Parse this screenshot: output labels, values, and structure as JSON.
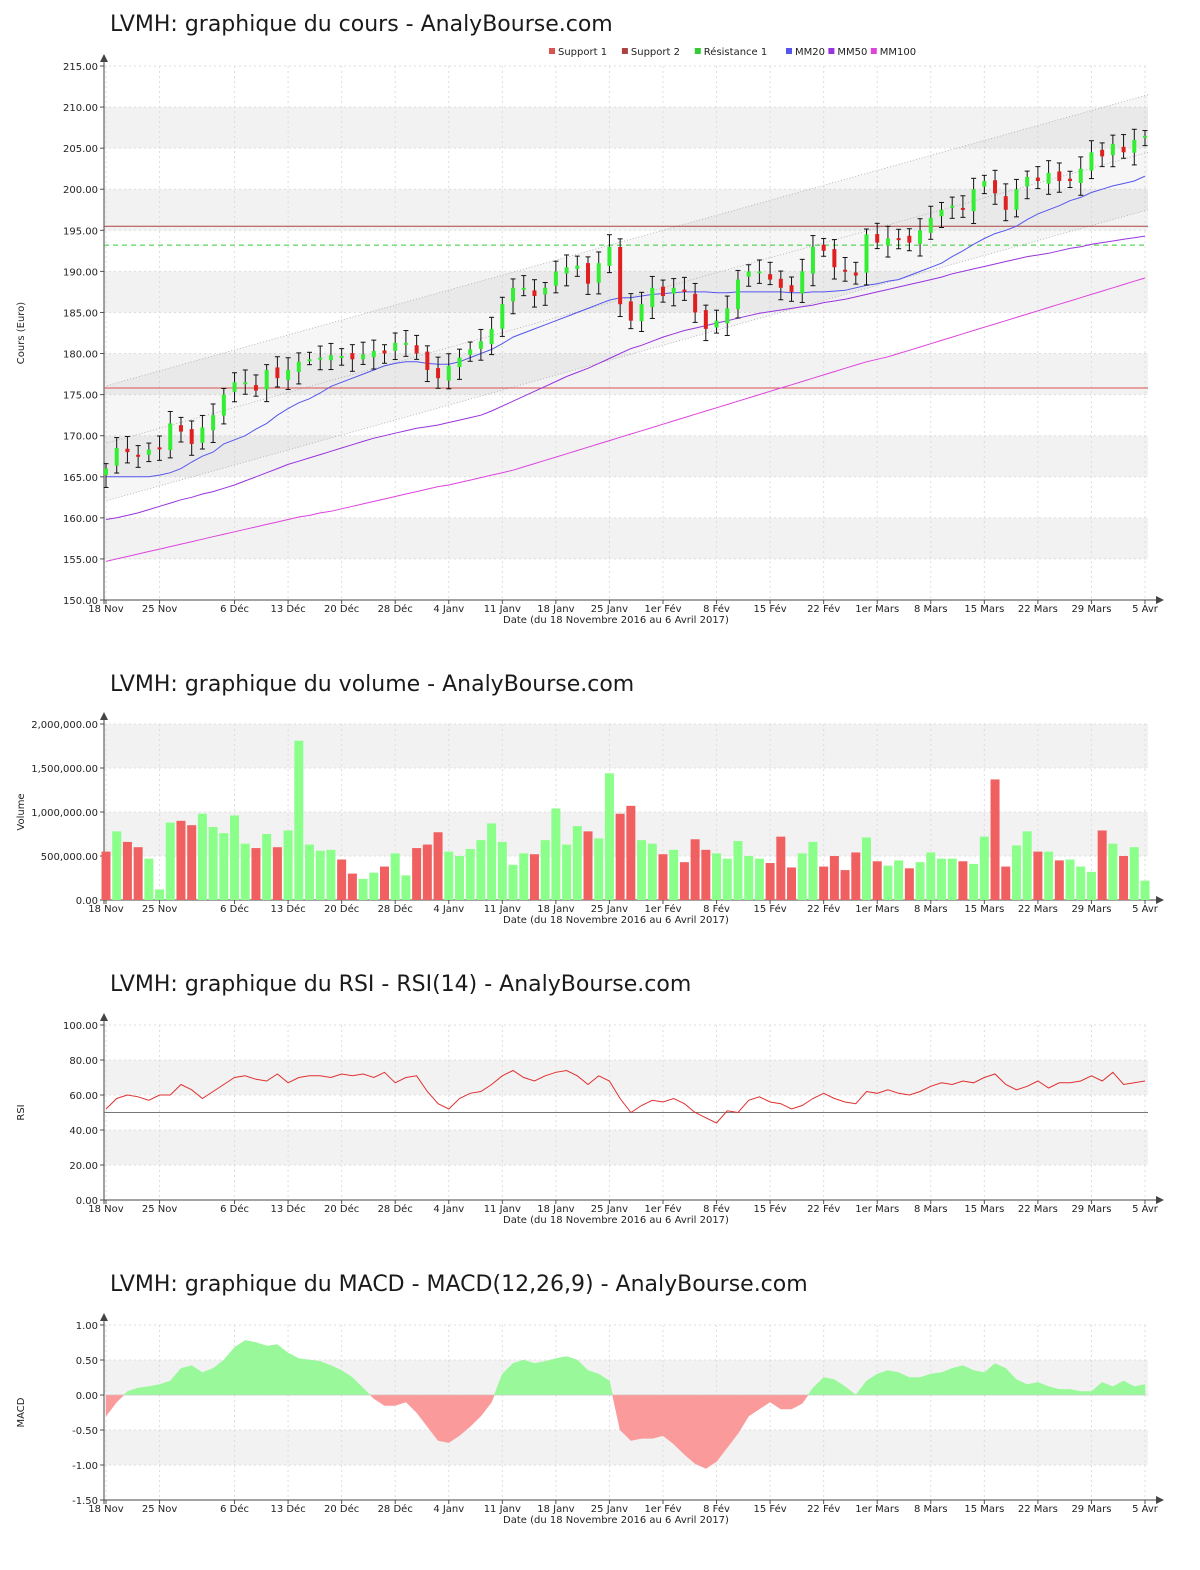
{
  "chart_data": [
    {
      "type": "candlestick",
      "title": "LVMH: graphique du cours - AnalyBourse.com",
      "xlabel": "Date (du 18 Novembre 2016 au 6 Avril 2017)",
      "ylabel": "Cours (Euro)",
      "ylim": [
        150,
        215
      ],
      "yticks": [
        "150.00",
        "155.00",
        "160.00",
        "165.00",
        "170.00",
        "175.00",
        "180.00",
        "185.00",
        "190.00",
        "195.00",
        "200.00",
        "205.00",
        "210.00",
        "215.00"
      ],
      "xticks": [
        "18 Nov",
        "25 Nov",
        "6 Déc",
        "13 Déc",
        "20 Déc",
        "28 Déc",
        "4 Janv",
        "11 Janv",
        "18 Janv",
        "25 Janv",
        "1er Fév",
        "8 Fév",
        "15 Fév",
        "22 Fév",
        "1er Mars",
        "8 Mars",
        "15 Mars",
        "22 Mars",
        "29 Mars",
        "5 Avr"
      ],
      "xtick_index": [
        0,
        5,
        12,
        17,
        22,
        27,
        32,
        37,
        42,
        47,
        52,
        57,
        62,
        67,
        72,
        77,
        82,
        87,
        92,
        97
      ],
      "legend": [
        {
          "name": "Support 1",
          "color": "#d9534f"
        },
        {
          "name": "Support 2",
          "color": "#a94442"
        },
        {
          "name": "Résistance 1",
          "color": "#33cc33"
        },
        {
          "name": "MM20",
          "color": "#5555ee"
        },
        {
          "name": "MM50",
          "color": "#9933dd"
        },
        {
          "name": "MM100",
          "color": "#dd44dd"
        }
      ],
      "levels": {
        "support1": 175.8,
        "support2": 195.5,
        "resistance1": 193.2
      },
      "close": [
        166.0,
        168.5,
        168.0,
        167.5,
        168.3,
        168.5,
        171.5,
        170.5,
        169.0,
        171.0,
        172.5,
        175.0,
        176.5,
        176.5,
        175.5,
        178.0,
        177.0,
        178.0,
        179.0,
        179.3,
        179.5,
        179.8,
        179.7,
        179.3,
        179.9,
        180.3,
        180.0,
        181.3,
        181.3,
        180.0,
        178.0,
        177.0,
        178.5,
        179.5,
        180.5,
        181.5,
        183.0,
        186.0,
        188.0,
        188.0,
        187.0,
        188.0,
        190.0,
        190.5,
        190.7,
        188.5,
        191.0,
        193.0,
        186.0,
        184.0,
        186.0,
        188.0,
        187.0,
        188.0,
        187.5,
        185.0,
        183.0,
        184.0,
        185.5,
        189.0,
        190.0,
        190.0,
        189.0,
        188.0,
        187.5,
        190.0,
        193.0,
        192.5,
        190.5,
        190.0,
        189.5,
        194.5,
        193.5,
        194.0,
        194.0,
        193.5,
        195.0,
        196.5,
        197.5,
        198.0,
        197.5,
        200.0,
        201.0,
        199.5,
        197.5,
        200.0,
        201.5,
        201.0,
        202.0,
        201.0,
        201.0,
        202.5,
        204.5,
        204.0,
        205.5,
        204.5,
        206.0,
        206.5
      ],
      "series": [
        {
          "name": "MM20",
          "values": [
            165.0,
            165.0,
            165.0,
            165.0,
            165.0,
            165.2,
            165.5,
            166.0,
            166.8,
            167.5,
            168.0,
            169.0,
            169.5,
            170.0,
            170.8,
            171.5,
            172.5,
            173.3,
            174.0,
            174.5,
            175.2,
            176.0,
            176.5,
            177.0,
            177.5,
            178.0,
            178.5,
            178.8,
            179.0,
            179.0,
            178.8,
            178.7,
            178.7,
            179.0,
            179.5,
            180.0,
            180.5,
            181.2,
            182.0,
            182.5,
            183.0,
            183.5,
            184.0,
            184.5,
            185.0,
            185.5,
            186.0,
            186.5,
            186.8,
            186.8,
            187.0,
            187.2,
            187.3,
            187.4,
            187.5,
            187.5,
            187.5,
            187.4,
            187.4,
            187.5,
            187.5,
            187.5,
            187.5,
            187.5,
            187.4,
            187.4,
            187.5,
            187.5,
            187.6,
            187.7,
            188.0,
            188.3,
            188.5,
            188.8,
            189.0,
            189.5,
            190.0,
            190.5,
            191.0,
            191.8,
            192.5,
            193.3,
            194.0,
            194.6,
            195.0,
            195.5,
            196.3,
            197.0,
            197.5,
            198.0,
            198.6,
            199.0,
            199.6,
            200.0,
            200.4,
            200.7,
            201.0,
            201.6
          ]
        },
        {
          "name": "MM50",
          "values": [
            159.8,
            160.0,
            160.3,
            160.6,
            161.0,
            161.4,
            161.8,
            162.2,
            162.5,
            162.9,
            163.2,
            163.6,
            164.0,
            164.5,
            165.0,
            165.5,
            166.0,
            166.5,
            166.9,
            167.3,
            167.7,
            168.1,
            168.5,
            168.9,
            169.3,
            169.7,
            170.0,
            170.3,
            170.6,
            170.9,
            171.1,
            171.3,
            171.6,
            171.9,
            172.2,
            172.5,
            173.0,
            173.6,
            174.2,
            174.8,
            175.4,
            176.0,
            176.6,
            177.2,
            177.7,
            178.2,
            178.8,
            179.4,
            180.0,
            180.6,
            181.0,
            181.5,
            182.0,
            182.4,
            182.8,
            183.1,
            183.4,
            183.7,
            184.0,
            184.3,
            184.6,
            184.9,
            185.1,
            185.3,
            185.5,
            185.7,
            185.9,
            186.2,
            186.4,
            186.6,
            186.9,
            187.2,
            187.5,
            187.8,
            188.1,
            188.4,
            188.7,
            189.0,
            189.3,
            189.7,
            190.0,
            190.3,
            190.6,
            190.9,
            191.2,
            191.5,
            191.8,
            192.0,
            192.2,
            192.5,
            192.8,
            193.0,
            193.3,
            193.5,
            193.7,
            193.9,
            194.1,
            194.3
          ]
        },
        {
          "name": "MM100",
          "values": [
            154.7,
            155.0,
            155.3,
            155.6,
            155.9,
            156.2,
            156.5,
            156.8,
            157.1,
            157.4,
            157.7,
            158.0,
            158.3,
            158.6,
            158.9,
            159.2,
            159.5,
            159.8,
            160.1,
            160.3,
            160.6,
            160.8,
            161.1,
            161.4,
            161.7,
            162.0,
            162.3,
            162.6,
            162.9,
            163.2,
            163.5,
            163.8,
            164.0,
            164.3,
            164.6,
            164.9,
            165.2,
            165.5,
            165.8,
            166.2,
            166.6,
            167.0,
            167.4,
            167.8,
            168.2,
            168.6,
            169.0,
            169.4,
            169.8,
            170.2,
            170.6,
            171.0,
            171.4,
            171.8,
            172.2,
            172.6,
            173.0,
            173.4,
            173.8,
            174.2,
            174.6,
            175.0,
            175.4,
            175.8,
            176.2,
            176.6,
            177.0,
            177.4,
            177.8,
            178.2,
            178.6,
            179.0,
            179.3,
            179.6,
            180.0,
            180.4,
            180.8,
            181.2,
            181.6,
            182.0,
            182.4,
            182.8,
            183.2,
            183.6,
            184.0,
            184.4,
            184.8,
            185.2,
            185.6,
            186.0,
            186.4,
            186.8,
            187.2,
            187.6,
            188.0,
            188.4,
            188.8,
            189.2
          ]
        }
      ],
      "channel": {
        "upper": [
          176.0,
          211.5
        ],
        "lower": [
          162.0,
          197.5
        ],
        "mid": [
          169.0,
          204.5
        ]
      },
      "grid": true
    },
    {
      "type": "bar",
      "title": "LVMH: graphique du volume - AnalyBourse.com",
      "xlabel": "Date (du 18 Novembre 2016 au 6 Avril 2017)",
      "ylabel": "Volume",
      "ylim": [
        0,
        2000000
      ],
      "yticks": [
        "0.00",
        "500,000.00",
        "1,000,000.00",
        "1,500,000.00",
        "2,000,000.00"
      ],
      "values": [
        550000,
        780000,
        660000,
        600000,
        470000,
        120000,
        880000,
        900000,
        850000,
        980000,
        830000,
        760000,
        960000,
        640000,
        590000,
        750000,
        600000,
        790000,
        1810000,
        630000,
        560000,
        570000,
        460000,
        300000,
        240000,
        310000,
        380000,
        530000,
        280000,
        590000,
        630000,
        770000,
        550000,
        500000,
        580000,
        680000,
        870000,
        660000,
        400000,
        530000,
        520000,
        680000,
        1040000,
        630000,
        840000,
        780000,
        700000,
        1440000,
        980000,
        1070000,
        680000,
        640000,
        520000,
        570000,
        430000,
        690000,
        570000,
        530000,
        470000,
        670000,
        500000,
        470000,
        420000,
        720000,
        370000,
        530000,
        660000,
        380000,
        500000,
        340000,
        540000,
        710000,
        440000,
        390000,
        450000,
        360000,
        430000,
        540000,
        470000,
        470000,
        440000,
        410000,
        720000,
        1370000,
        380000,
        620000,
        780000,
        550000,
        550000,
        450000,
        460000,
        380000,
        320000,
        790000,
        640000,
        500000,
        600000,
        220000
      ],
      "grid": true
    },
    {
      "type": "line",
      "title": "LVMH: graphique du RSI - RSI(14) - AnalyBourse.com",
      "xlabel": "Date (du 18 Novembre 2016 au 6 Avril 2017)",
      "ylabel": "RSI",
      "ylim": [
        0,
        100
      ],
      "yticks": [
        "0.00",
        "20.00",
        "40.00",
        "60.00",
        "80.00",
        "100.00"
      ],
      "reference": 50,
      "values": [
        52,
        58,
        60,
        59,
        57,
        60,
        60,
        66,
        63,
        58,
        62,
        66,
        70,
        71,
        69,
        68,
        72,
        67,
        70,
        71,
        71,
        70,
        72,
        71,
        72,
        70,
        73,
        67,
        70,
        71,
        62,
        55,
        52,
        58,
        61,
        62,
        66,
        71,
        74,
        70,
        68,
        71,
        73,
        74,
        71,
        66,
        71,
        68,
        58,
        50,
        54,
        57,
        56,
        58,
        55,
        50,
        47,
        44,
        51,
        50,
        57,
        59,
        56,
        55,
        52,
        54,
        58,
        61,
        58,
        56,
        55,
        62,
        61,
        63,
        61,
        60,
        62,
        65,
        67,
        66,
        68,
        67,
        70,
        72,
        66,
        63,
        65,
        68,
        64,
        67,
        67,
        68,
        71,
        68,
        73,
        66,
        67,
        68
      ],
      "grid": true
    },
    {
      "type": "area",
      "title": "LVMH: graphique du MACD - MACD(12,26,9) - AnalyBourse.com",
      "xlabel": "Date (du 18 Novembre 2016 au 6 Avril 2017)",
      "ylabel": "MACD",
      "ylim": [
        -1.5,
        1.0
      ],
      "yticks": [
        "-1.50",
        "-1.00",
        "-0.50",
        "0.00",
        "0.50",
        "1.00"
      ],
      "values": [
        -0.3,
        -0.1,
        0.05,
        0.1,
        0.12,
        0.15,
        0.2,
        0.38,
        0.42,
        0.32,
        0.38,
        0.5,
        0.68,
        0.78,
        0.75,
        0.7,
        0.72,
        0.6,
        0.52,
        0.5,
        0.48,
        0.42,
        0.35,
        0.25,
        0.1,
        -0.05,
        -0.15,
        -0.15,
        -0.1,
        -0.25,
        -0.45,
        -0.65,
        -0.68,
        -0.58,
        -0.45,
        -0.3,
        -0.1,
        0.3,
        0.45,
        0.5,
        0.45,
        0.48,
        0.52,
        0.55,
        0.5,
        0.35,
        0.3,
        0.2,
        -0.5,
        -0.65,
        -0.62,
        -0.62,
        -0.58,
        -0.7,
        -0.85,
        -0.98,
        -1.05,
        -0.95,
        -0.75,
        -0.55,
        -0.3,
        -0.2,
        -0.1,
        -0.2,
        -0.2,
        -0.12,
        0.1,
        0.25,
        0.22,
        0.12,
        0.0,
        0.2,
        0.3,
        0.35,
        0.32,
        0.25,
        0.25,
        0.3,
        0.32,
        0.38,
        0.42,
        0.35,
        0.32,
        0.45,
        0.38,
        0.22,
        0.15,
        0.18,
        0.12,
        0.08,
        0.08,
        0.05,
        0.05,
        0.18,
        0.12,
        0.2,
        0.12,
        0.15
      ],
      "grid": true
    }
  ],
  "charts": {
    "price": {
      "title": "LVMH: graphique du cours - AnalyBourse.com"
    },
    "volume": {
      "title": "LVMH: graphique du volume - AnalyBourse.com"
    },
    "rsi": {
      "title": "LVMH: graphique du RSI - RSI(14) - AnalyBourse.com"
    },
    "macd": {
      "title": "LVMH: graphique du MACD - MACD(12,26,9) - AnalyBourse.com"
    }
  },
  "colors": {
    "up": "#33ee33",
    "down": "#e02020",
    "grid": "#dddddd",
    "band": "#f2f2f2"
  }
}
